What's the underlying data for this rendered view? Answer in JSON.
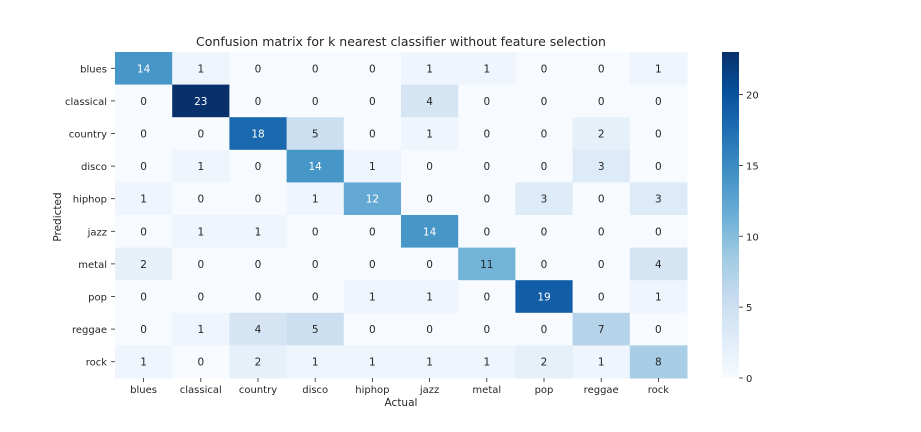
{
  "chart_data": {
    "type": "heatmap",
    "title": "Confusion matrix for k nearest classifier without feature selection",
    "xlabel": "Actual",
    "ylabel": "Predicted",
    "x_categories": [
      "blues",
      "classical",
      "country",
      "disco",
      "hiphop",
      "jazz",
      "metal",
      "pop",
      "reggae",
      "rock"
    ],
    "y_categories": [
      "blues",
      "classical",
      "country",
      "disco",
      "hiphop",
      "jazz",
      "metal",
      "pop",
      "reggae",
      "rock"
    ],
    "values": [
      [
        14,
        1,
        0,
        0,
        0,
        1,
        1,
        0,
        0,
        1
      ],
      [
        0,
        23,
        0,
        0,
        0,
        4,
        0,
        0,
        0,
        0
      ],
      [
        0,
        0,
        18,
        5,
        0,
        1,
        0,
        0,
        2,
        0
      ],
      [
        0,
        1,
        0,
        14,
        1,
        0,
        0,
        0,
        3,
        0
      ],
      [
        1,
        0,
        0,
        1,
        12,
        0,
        0,
        3,
        0,
        3
      ],
      [
        0,
        1,
        1,
        0,
        0,
        14,
        0,
        0,
        0,
        0
      ],
      [
        2,
        0,
        0,
        0,
        0,
        0,
        11,
        0,
        0,
        4
      ],
      [
        0,
        0,
        0,
        0,
        1,
        1,
        0,
        19,
        0,
        1
      ],
      [
        0,
        1,
        4,
        5,
        0,
        0,
        0,
        0,
        7,
        0
      ],
      [
        1,
        0,
        2,
        1,
        1,
        1,
        1,
        2,
        1,
        8
      ]
    ],
    "colormap": "Blues",
    "vmin": 0,
    "vmax": 23,
    "colorbar_ticks": [
      0,
      5,
      10,
      15,
      20
    ]
  }
}
